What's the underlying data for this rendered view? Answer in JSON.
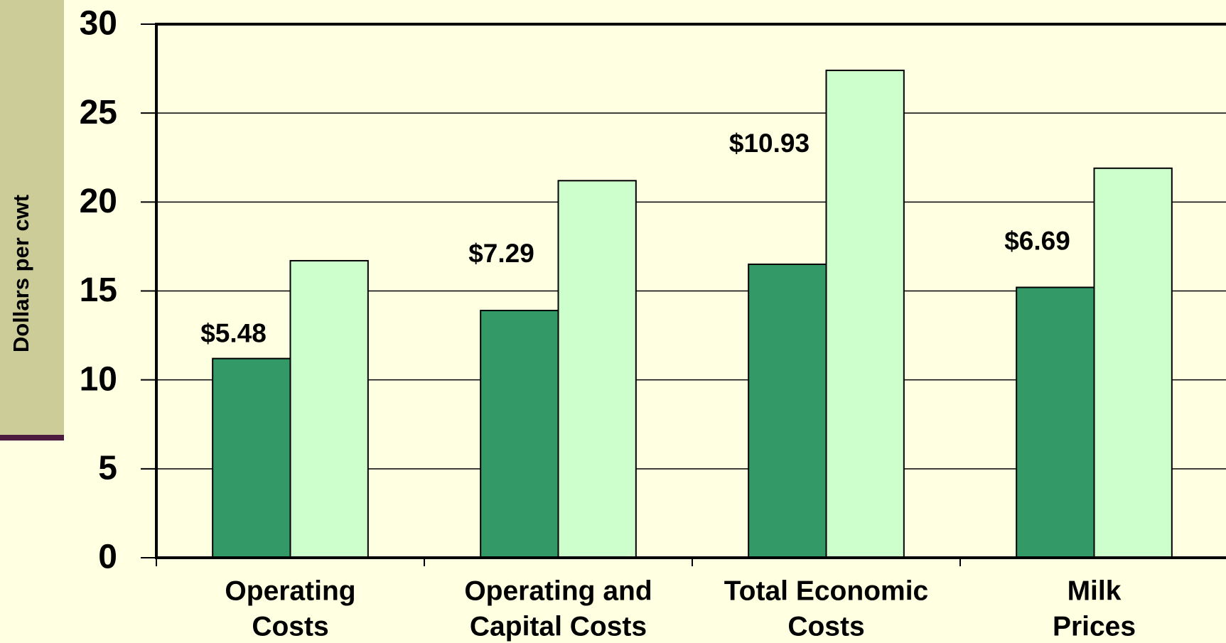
{
  "chart_data": {
    "type": "bar",
    "y_label": "Dollars per cwt",
    "categories": [
      [
        "Operating",
        "Costs"
      ],
      [
        "Operating and",
        "Capital Costs"
      ],
      [
        "Total Economic",
        "Costs"
      ],
      [
        "Milk",
        "Prices"
      ]
    ],
    "series": [
      {
        "color": "#339966",
        "values": [
          11.2,
          13.9,
          16.5,
          15.2
        ]
      },
      {
        "color": "#ccffcc",
        "values": [
          16.7,
          21.2,
          27.4,
          21.9
        ]
      }
    ],
    "annotations": [
      "$5.48",
      "$7.29",
      "$10.93",
      "$6.69"
    ],
    "ylim": [
      0,
      30
    ],
    "yticks": [
      0,
      5,
      10,
      15,
      20,
      25,
      30
    ],
    "grid": true
  }
}
